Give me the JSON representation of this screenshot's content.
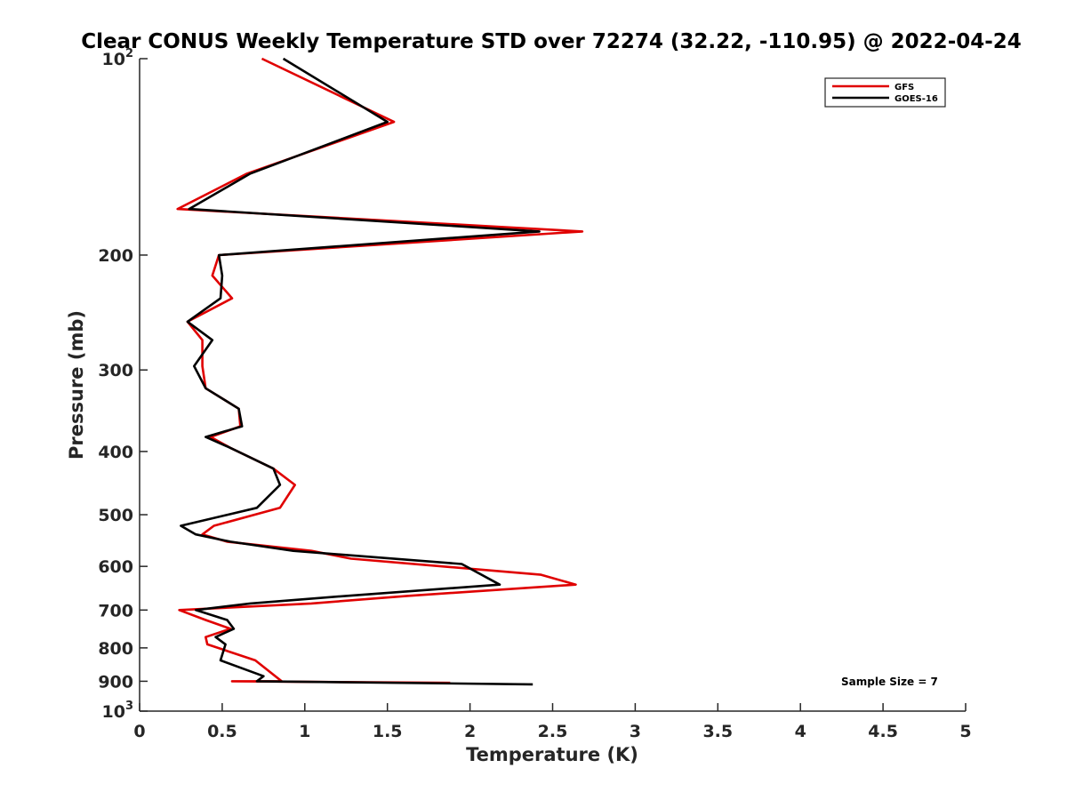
{
  "chart_data": {
    "type": "line",
    "title": "Clear CONUS Weekly Temperature STD over 72274 (32.22, -110.95) @ 2022-04-24",
    "xlabel": "Temperature (K)",
    "ylabel": "Pressure (mb)",
    "xlim": [
      0,
      5
    ],
    "ylim": [
      100,
      1000
    ],
    "yscale": "log",
    "yreversed": true,
    "x_ticks": [
      0,
      0.5,
      1,
      1.5,
      2,
      2.5,
      3,
      3.5,
      4,
      4.5,
      5
    ],
    "x_tick_labels": [
      "0",
      "0.5",
      "1",
      "1.5",
      "2",
      "2.5",
      "3",
      "3.5",
      "4",
      "4.5",
      "5"
    ],
    "y_ticks": [
      100,
      200,
      300,
      400,
      500,
      600,
      700,
      800,
      900,
      1000
    ],
    "y_tick_labels": [
      {
        "base": "10",
        "exp": "2"
      },
      {
        "base": "200",
        "exp": ""
      },
      {
        "base": "300",
        "exp": ""
      },
      {
        "base": "400",
        "exp": ""
      },
      {
        "base": "500",
        "exp": ""
      },
      {
        "base": "600",
        "exp": ""
      },
      {
        "base": "700",
        "exp": ""
      },
      {
        "base": "800",
        "exp": ""
      },
      {
        "base": "900",
        "exp": ""
      },
      {
        "base": "10",
        "exp": "3"
      }
    ],
    "grid": false,
    "legend_position": "top-right",
    "annotation": "Sample Size = 7",
    "series": [
      {
        "name": "GFS",
        "color": "#e00000",
        "points": [
          [
            0.74,
            100
          ],
          [
            1.54,
            125
          ],
          [
            0.65,
            150
          ],
          [
            0.23,
            170
          ],
          [
            2.68,
            184
          ],
          [
            0.48,
            200
          ],
          [
            0.44,
            215
          ],
          [
            0.56,
            233
          ],
          [
            0.29,
            253
          ],
          [
            0.38,
            270
          ],
          [
            0.38,
            296
          ],
          [
            0.4,
            320
          ],
          [
            0.6,
            344
          ],
          [
            0.61,
            366
          ],
          [
            0.43,
            380
          ],
          [
            0.55,
            395
          ],
          [
            0.81,
            425
          ],
          [
            0.94,
            450
          ],
          [
            0.85,
            488
          ],
          [
            0.45,
            520
          ],
          [
            0.38,
            536
          ],
          [
            0.53,
            550
          ],
          [
            1.04,
            568
          ],
          [
            1.28,
            584
          ],
          [
            2.43,
            618
          ],
          [
            2.64,
            640
          ],
          [
            1.62,
            666
          ],
          [
            1.04,
            684
          ],
          [
            0.24,
            700
          ],
          [
            0.4,
            725
          ],
          [
            0.55,
            748
          ],
          [
            0.4,
            770
          ],
          [
            0.41,
            790
          ],
          [
            0.7,
            836
          ],
          [
            0.86,
            900
          ],
          [
            0.56,
            900
          ],
          [
            1.88,
            905
          ]
        ]
      },
      {
        "name": "GOES-16",
        "color": "#000000",
        "points": [
          [
            0.87,
            100
          ],
          [
            1.5,
            125
          ],
          [
            0.67,
            150
          ],
          [
            0.3,
            170
          ],
          [
            2.42,
            184
          ],
          [
            0.48,
            200
          ],
          [
            0.5,
            215
          ],
          [
            0.49,
            233
          ],
          [
            0.29,
            253
          ],
          [
            0.44,
            270
          ],
          [
            0.33,
            296
          ],
          [
            0.4,
            320
          ],
          [
            0.6,
            344
          ],
          [
            0.62,
            366
          ],
          [
            0.4,
            380
          ],
          [
            0.55,
            395
          ],
          [
            0.81,
            425
          ],
          [
            0.85,
            450
          ],
          [
            0.71,
            488
          ],
          [
            0.25,
            520
          ],
          [
            0.34,
            536
          ],
          [
            0.55,
            550
          ],
          [
            0.93,
            568
          ],
          [
            1.95,
            595
          ],
          [
            2.18,
            640
          ],
          [
            1.25,
            666
          ],
          [
            0.67,
            684
          ],
          [
            0.34,
            700
          ],
          [
            0.53,
            725
          ],
          [
            0.57,
            748
          ],
          [
            0.46,
            770
          ],
          [
            0.52,
            790
          ],
          [
            0.49,
            836
          ],
          [
            0.75,
            884
          ],
          [
            0.71,
            900
          ],
          [
            2.38,
            910
          ]
        ]
      }
    ]
  }
}
